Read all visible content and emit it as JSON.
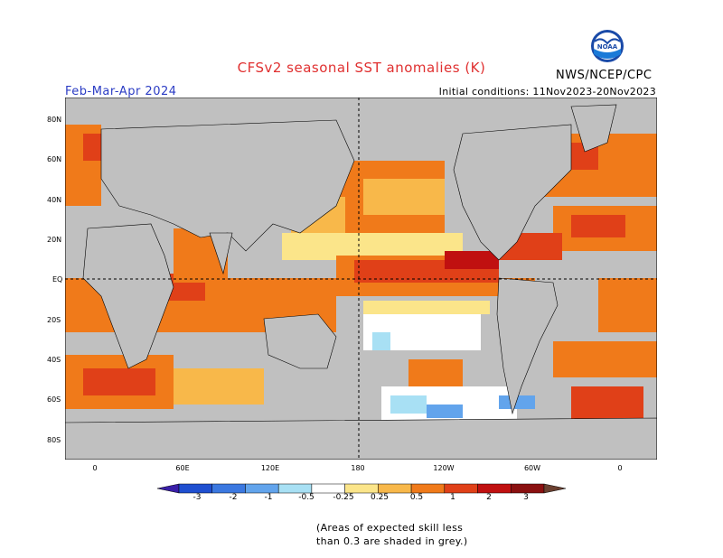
{
  "title": "CFSv2 seasonal SST anomalies (K)",
  "agency": "NWS/NCEP/CPC",
  "season": "Feb-Mar-Apr 2024",
  "initial_conditions": "Initial conditions: 11Nov2023-20Nov2023",
  "logo_text": "NOAA",
  "lat_labels": [
    "80N",
    "60N",
    "40N",
    "20N",
    "EQ",
    "20S",
    "40S",
    "60S",
    "80S"
  ],
  "lon_labels": [
    "0",
    "60E",
    "120E",
    "180",
    "120W",
    "60W",
    "0"
  ],
  "colorbar": {
    "labels": [
      "-3",
      "-2",
      "-1",
      "-0.5",
      "-0.25",
      "0.25",
      "0.5",
      "1",
      "2",
      "3"
    ],
    "colors": [
      "#3a1fa8",
      "#1f4fd0",
      "#3b78e0",
      "#62a4ec",
      "#a8e0f4",
      "#ffffff",
      "#fbe58a",
      "#f8b84a",
      "#f07a1a",
      "#e04018",
      "#c01010",
      "#8a1010",
      "#6b4030"
    ]
  },
  "note": {
    "line1": "(Areas of expected skill less",
    "line2": "than 0.3 are shaded in grey.)"
  },
  "colors": {
    "land": "#c0c0c0",
    "title": "#e03030",
    "season": "#2b3cc4"
  }
}
